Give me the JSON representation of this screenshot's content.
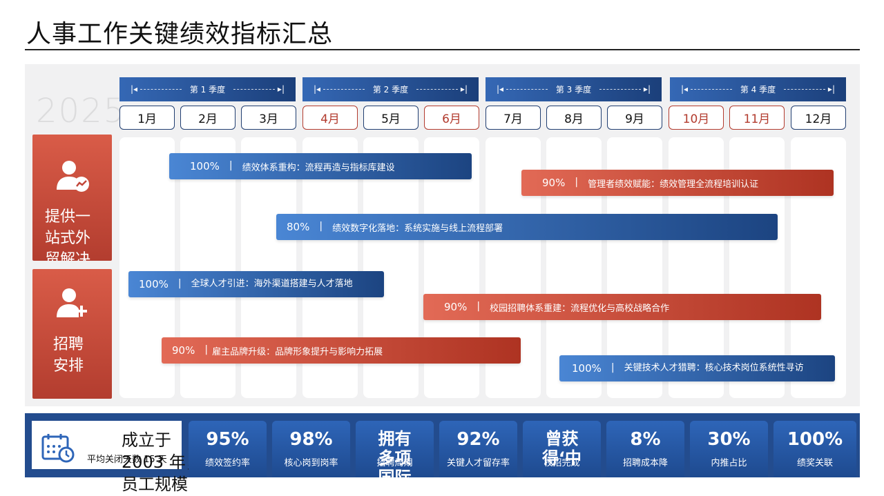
{
  "title": "人事工作关键绩效指标汇总",
  "year": "2025",
  "quarters": [
    "第 1 季度",
    "第 2 季度",
    "第 3 季度",
    "第 4 季度"
  ],
  "months": [
    "1月",
    "2月",
    "3月",
    "4月",
    "5月",
    "6月",
    "7月",
    "8月",
    "9月",
    "10月",
    "11月",
    "12月"
  ],
  "highlighted_months": [
    "4月",
    "6月",
    "10月",
    "11月"
  ],
  "left_cards": [
    {
      "text": "提供一站式外贸解决方案，包括产品定制、市场分析、物流配送等，助",
      "icon": "user-chart-icon"
    },
    {
      "text": "招聘安排",
      "icon": "user-add-icon"
    }
  ],
  "bars": [
    {
      "pct": "100%",
      "desc": "绩效体系重构：流程再造与指标库建设",
      "color": "blue"
    },
    {
      "pct": "90%",
      "desc": "管理者绩效赋能：绩效管理全流程培训认证",
      "color": "red"
    },
    {
      "pct": "80%",
      "desc": "绩效数字化落地：系统实施与线上流程部署",
      "color": "blue"
    },
    {
      "pct": "100%",
      "desc": "全球人才引进：海外渠道搭建与人才落地",
      "color": "blue"
    },
    {
      "pct": "90%",
      "desc": "校园招聘体系重建：流程优化与高校战略合作",
      "color": "red"
    },
    {
      "pct": "90%",
      "desc": "雇主品牌升级：品牌形象提升与影响力拓展",
      "color": "red"
    },
    {
      "pct": "100%",
      "desc": "关键技术人才猎聘：核心技术岗位系统性寻访",
      "color": "blue"
    }
  ],
  "company": {
    "big": "成立于 2003 年，员工规模",
    "small": "平均关闭天数 15 天"
  },
  "stats": [
    {
      "value": "95%",
      "label": "绩效签约率"
    },
    {
      "value": "98%",
      "label": "核心岗到岗率"
    },
    {
      "value": "拥有多项国际",
      "label": "招聘周期"
    },
    {
      "value": "92%",
      "label": "关键人才留存率"
    },
    {
      "value": "曾获得‘中",
      "label": "校招完成"
    },
    {
      "value": "8%",
      "label": "招聘成本降"
    },
    {
      "value": "30%",
      "label": "内推占比"
    },
    {
      "value": "100%",
      "label": "绩奖关联"
    }
  ],
  "colors": {
    "blue": "#1c4481",
    "red": "#b23a2d",
    "stats_bg": "#234c8e"
  }
}
